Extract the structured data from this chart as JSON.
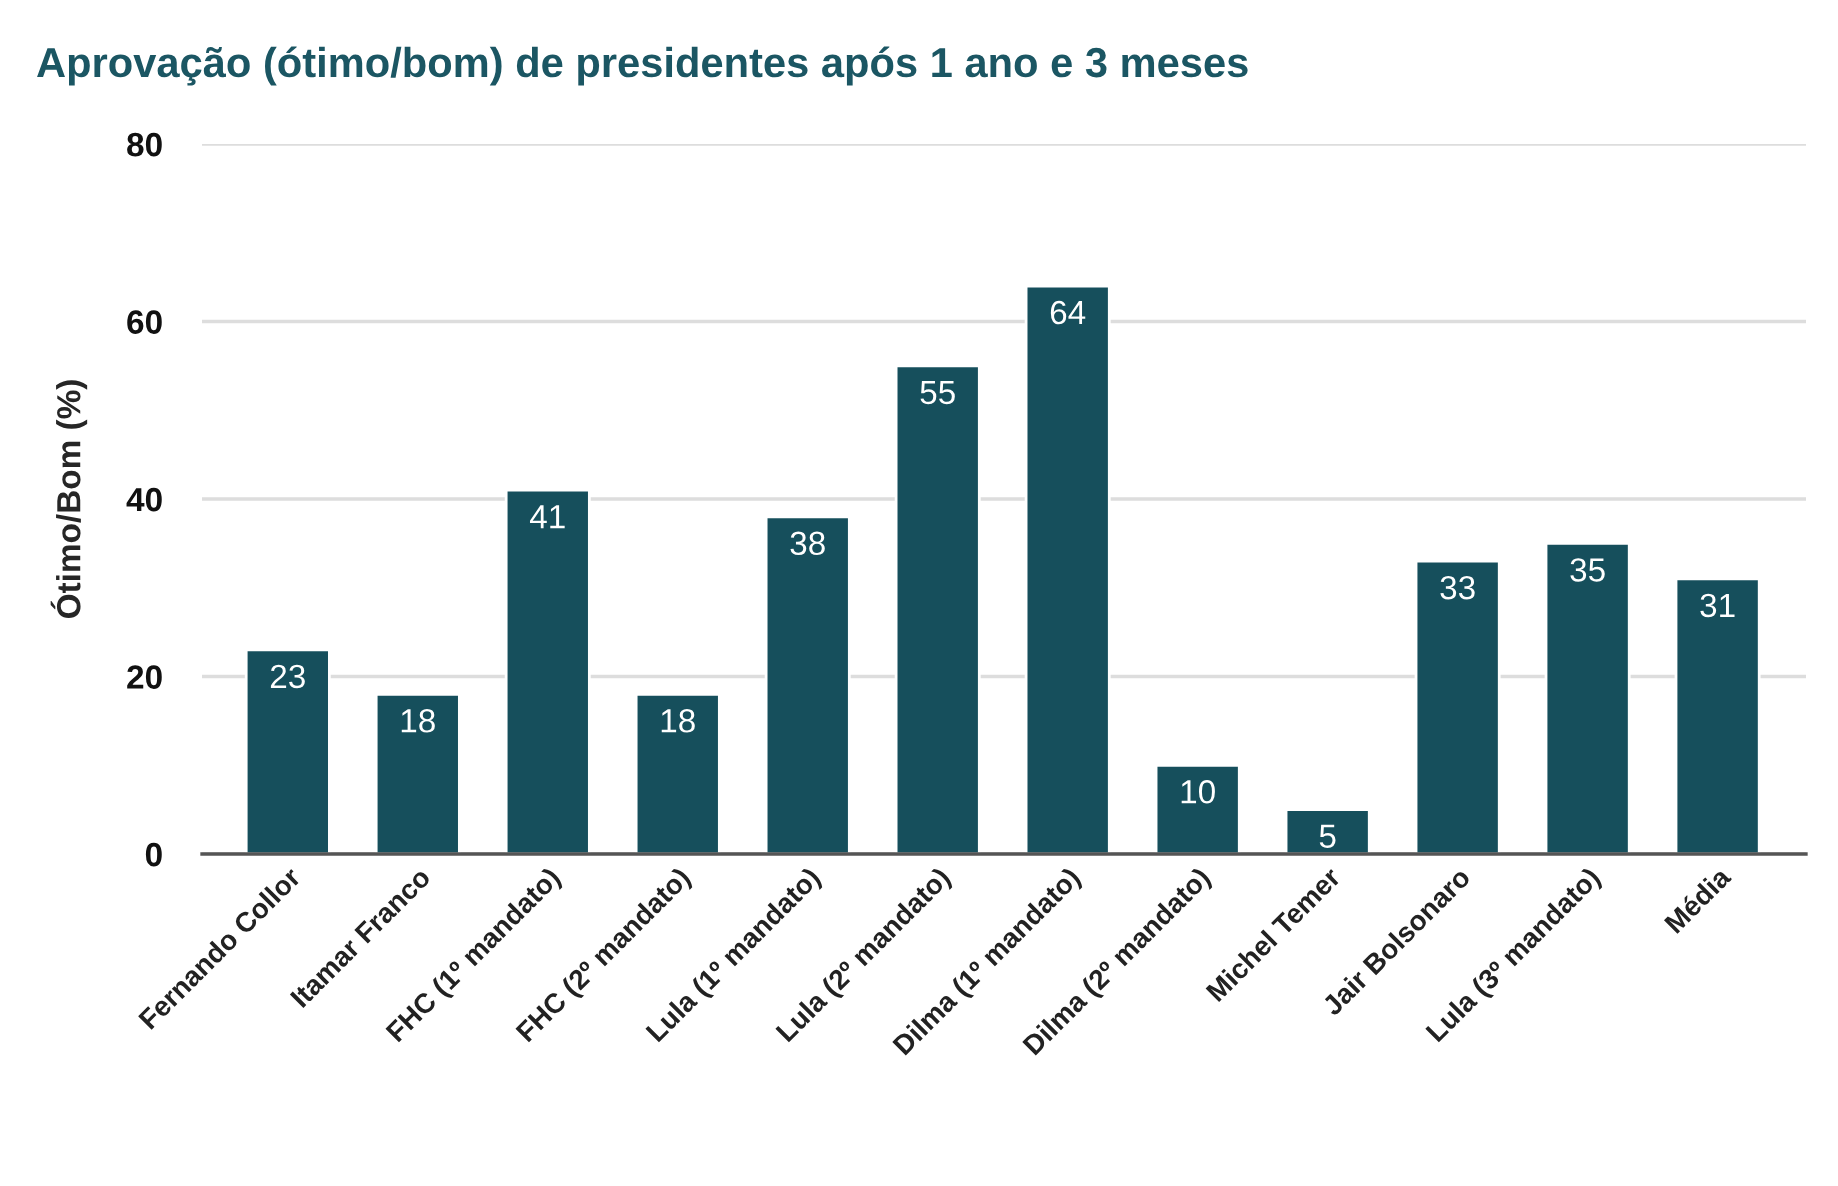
{
  "chart_data": {
    "type": "bar",
    "title": "Aprovação (ótimo/bom) de presidentes após 1 ano e 3 meses",
    "ylabel": "Ótimo/Bom (%)",
    "categories": [
      "Fernando Collor",
      "Itamar Franco",
      "FHC (1º mandato)",
      "FHC (2º mandato)",
      "Lula (1º mandato)",
      "Lula (2º mandato)",
      "Dilma (1º mandato)",
      "Dilma (2º mandato)",
      "Michel Temer",
      "Jair Bolsonaro",
      "Lula (3º mandato)",
      "Média"
    ],
    "values": [
      23,
      18,
      41,
      18,
      38,
      55,
      64,
      10,
      5,
      33,
      35,
      31
    ],
    "color": "#164f5c",
    "ylim": [
      0,
      80
    ],
    "yticks": [
      0,
      20,
      40,
      60,
      80
    ],
    "grid": "y",
    "data_labels": true
  }
}
